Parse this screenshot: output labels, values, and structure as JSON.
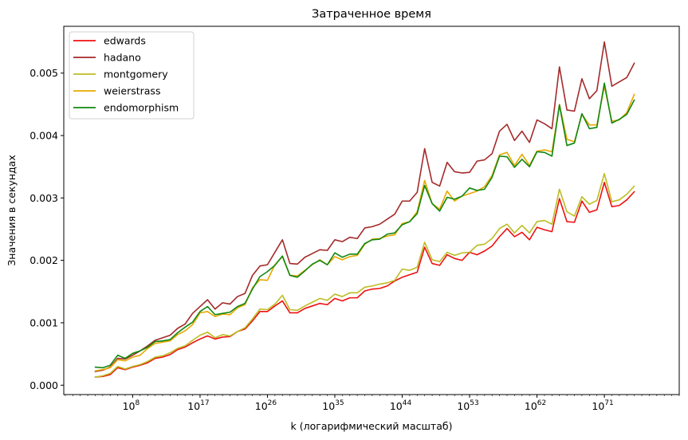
{
  "chart_data": {
    "type": "line",
    "title": "Затраченное время",
    "xlabel": "k (логарифмический масштаб)",
    "ylabel": "Значения в секундах",
    "x_scale": "log10",
    "xlim_log10": [
      -1.2,
      81
    ],
    "ylim": [
      -0.00015,
      0.00575
    ],
    "x_ticks": [
      {
        "log10": 8,
        "base": "10",
        "exp": "8"
      },
      {
        "log10": 17,
        "base": "10",
        "exp": "17"
      },
      {
        "log10": 26,
        "base": "10",
        "exp": "26"
      },
      {
        "log10": 35,
        "base": "10",
        "exp": "35"
      },
      {
        "log10": 44,
        "base": "10",
        "exp": "44"
      },
      {
        "log10": 53,
        "base": "10",
        "exp": "53"
      },
      {
        "log10": 62,
        "base": "10",
        "exp": "62"
      },
      {
        "log10": 71,
        "base": "10",
        "exp": "71"
      }
    ],
    "y_ticks": [
      {
        "value": 0.0,
        "label": "0.000"
      },
      {
        "value": 0.001,
        "label": "0.001"
      },
      {
        "value": 0.002,
        "label": "0.002"
      },
      {
        "value": 0.003,
        "label": "0.003"
      },
      {
        "value": 0.004,
        "label": "0.004"
      },
      {
        "value": 0.005,
        "label": "0.005"
      }
    ],
    "grid": false,
    "legend_position": "top-left",
    "x_log10": [
      3.0,
      4.0,
      5.0,
      6.0,
      7.0,
      8.0,
      9.0,
      10.0,
      11.0,
      12.0,
      13.0,
      14.0,
      15.0,
      16.0,
      17.0,
      18.0,
      19.0,
      20.0,
      21.0,
      22.0,
      23.0,
      24.0,
      25.0,
      26.0,
      27.0,
      28.0,
      29.0,
      30.0,
      31.0,
      32.0,
      33.0,
      34.0,
      35.0,
      36.0,
      37.0,
      38.0,
      39.0,
      40.0,
      41.0,
      42.0,
      43.0,
      44.0,
      45.0,
      46.0,
      47.0,
      48.0,
      49.0,
      50.0,
      51.0,
      52.0,
      53.0,
      54.0,
      55.0,
      56.0,
      57.0,
      58.0,
      59.0,
      60.0,
      61.0,
      62.0,
      63.0,
      64.0,
      65.0,
      66.0,
      67.0,
      68.0,
      69.0,
      70.0,
      71.0,
      72.0,
      73.0,
      74.0,
      75.0
    ],
    "series": [
      {
        "name": "edwards",
        "color": "#ee1111",
        "values": [
          0.00013,
          0.00014,
          0.00017,
          0.00028,
          0.00025,
          0.00029,
          0.00032,
          0.00036,
          0.00043,
          0.00045,
          0.00049,
          0.00057,
          0.00061,
          0.00068,
          0.00074,
          0.00079,
          0.00074,
          0.00077,
          0.00078,
          0.00086,
          0.0009,
          0.00103,
          0.00118,
          0.00118,
          0.00127,
          0.00135,
          0.00116,
          0.00116,
          0.00123,
          0.00127,
          0.00131,
          0.00129,
          0.00139,
          0.00135,
          0.0014,
          0.0014,
          0.00151,
          0.00154,
          0.00155,
          0.00159,
          0.00167,
          0.00173,
          0.00177,
          0.00181,
          0.00221,
          0.00195,
          0.00192,
          0.00209,
          0.00203,
          0.002,
          0.00213,
          0.00209,
          0.00215,
          0.00223,
          0.00238,
          0.00251,
          0.00238,
          0.00245,
          0.00233,
          0.00253,
          0.00249,
          0.00246,
          0.00299,
          0.00262,
          0.00261,
          0.00295,
          0.00277,
          0.00281,
          0.00325,
          0.00286,
          0.00288,
          0.00297,
          0.0031
        ]
      },
      {
        "name": "hadano",
        "color": "#a52a2a",
        "values": [
          0.00022,
          0.00024,
          0.00029,
          0.00043,
          0.00042,
          0.00048,
          0.00055,
          0.00063,
          0.00072,
          0.00076,
          0.0008,
          0.00091,
          0.00098,
          0.00115,
          0.00126,
          0.00137,
          0.00122,
          0.00132,
          0.0013,
          0.00142,
          0.00147,
          0.00176,
          0.00191,
          0.00193,
          0.00213,
          0.00233,
          0.00195,
          0.00194,
          0.00205,
          0.00211,
          0.00217,
          0.00216,
          0.00233,
          0.0023,
          0.00237,
          0.00235,
          0.00252,
          0.00254,
          0.00258,
          0.00266,
          0.00274,
          0.00295,
          0.00295,
          0.00309,
          0.00379,
          0.00325,
          0.00319,
          0.00357,
          0.00342,
          0.0034,
          0.00341,
          0.00359,
          0.00361,
          0.00371,
          0.00407,
          0.00418,
          0.00392,
          0.00407,
          0.00389,
          0.00425,
          0.00419,
          0.00411,
          0.0051,
          0.00441,
          0.00439,
          0.00491,
          0.00459,
          0.00472,
          0.0055,
          0.00479,
          0.00486,
          0.00493,
          0.00516
        ]
      },
      {
        "name": "montgomery",
        "color": "#bcbd22",
        "values": [
          0.00013,
          0.00015,
          0.00019,
          0.0003,
          0.00026,
          0.0003,
          0.00033,
          0.00038,
          0.00045,
          0.00047,
          0.00052,
          0.00059,
          0.00063,
          0.00072,
          0.0008,
          0.00085,
          0.00076,
          0.00081,
          0.00079,
          0.00086,
          0.00092,
          0.00106,
          0.00122,
          0.00121,
          0.0013,
          0.00144,
          0.00121,
          0.0012,
          0.00127,
          0.00133,
          0.00139,
          0.00136,
          0.00146,
          0.00142,
          0.00148,
          0.00148,
          0.00157,
          0.00159,
          0.00162,
          0.00164,
          0.00168,
          0.00186,
          0.00184,
          0.00189,
          0.00229,
          0.00201,
          0.00198,
          0.00213,
          0.00208,
          0.00212,
          0.00213,
          0.00224,
          0.00226,
          0.00235,
          0.00251,
          0.00258,
          0.00244,
          0.00256,
          0.00244,
          0.00262,
          0.00264,
          0.00258,
          0.00314,
          0.00278,
          0.00271,
          0.00302,
          0.0029,
          0.00296,
          0.00339,
          0.00294,
          0.00297,
          0.00306,
          0.00319
        ]
      },
      {
        "name": "weierstrass",
        "color": "#e8a800",
        "values": [
          0.00023,
          0.00025,
          0.00028,
          0.00041,
          0.00039,
          0.00045,
          0.00048,
          0.00059,
          0.00067,
          0.00069,
          0.00071,
          0.00081,
          0.00087,
          0.00097,
          0.00116,
          0.00118,
          0.0011,
          0.00114,
          0.00113,
          0.00124,
          0.00129,
          0.00156,
          0.00169,
          0.00168,
          0.00193,
          0.00206,
          0.00176,
          0.00175,
          0.00184,
          0.00193,
          0.00201,
          0.00193,
          0.00206,
          0.00201,
          0.00206,
          0.00208,
          0.00226,
          0.00234,
          0.00235,
          0.00239,
          0.00241,
          0.00259,
          0.00262,
          0.00278,
          0.00328,
          0.00291,
          0.00282,
          0.00311,
          0.00295,
          0.00303,
          0.00307,
          0.00311,
          0.00318,
          0.00336,
          0.00369,
          0.00373,
          0.00352,
          0.0037,
          0.00352,
          0.00375,
          0.00377,
          0.00374,
          0.0045,
          0.00394,
          0.0039,
          0.00434,
          0.00417,
          0.00417,
          0.00479,
          0.00423,
          0.00425,
          0.00437,
          0.00466
        ]
      },
      {
        "name": "endomorphism",
        "color": "#118811",
        "values": [
          0.00029,
          0.00028,
          0.00032,
          0.00048,
          0.00043,
          0.00051,
          0.00055,
          0.00061,
          0.0007,
          0.00071,
          0.00073,
          0.00084,
          0.00093,
          0.00101,
          0.00118,
          0.00126,
          0.00113,
          0.00115,
          0.00117,
          0.00126,
          0.00131,
          0.00154,
          0.00174,
          0.00182,
          0.00192,
          0.00207,
          0.00176,
          0.00173,
          0.00183,
          0.00194,
          0.002,
          0.00193,
          0.00212,
          0.00205,
          0.0021,
          0.0021,
          0.00227,
          0.00233,
          0.00234,
          0.00242,
          0.00244,
          0.00257,
          0.00262,
          0.00275,
          0.0032,
          0.00291,
          0.00279,
          0.00301,
          0.00298,
          0.00303,
          0.00316,
          0.00312,
          0.00314,
          0.00333,
          0.00367,
          0.00366,
          0.00349,
          0.00362,
          0.0035,
          0.00374,
          0.00373,
          0.00367,
          0.00449,
          0.00384,
          0.00388,
          0.00435,
          0.00411,
          0.00413,
          0.00484,
          0.0042,
          0.00426,
          0.00434,
          0.00457
        ]
      }
    ]
  }
}
